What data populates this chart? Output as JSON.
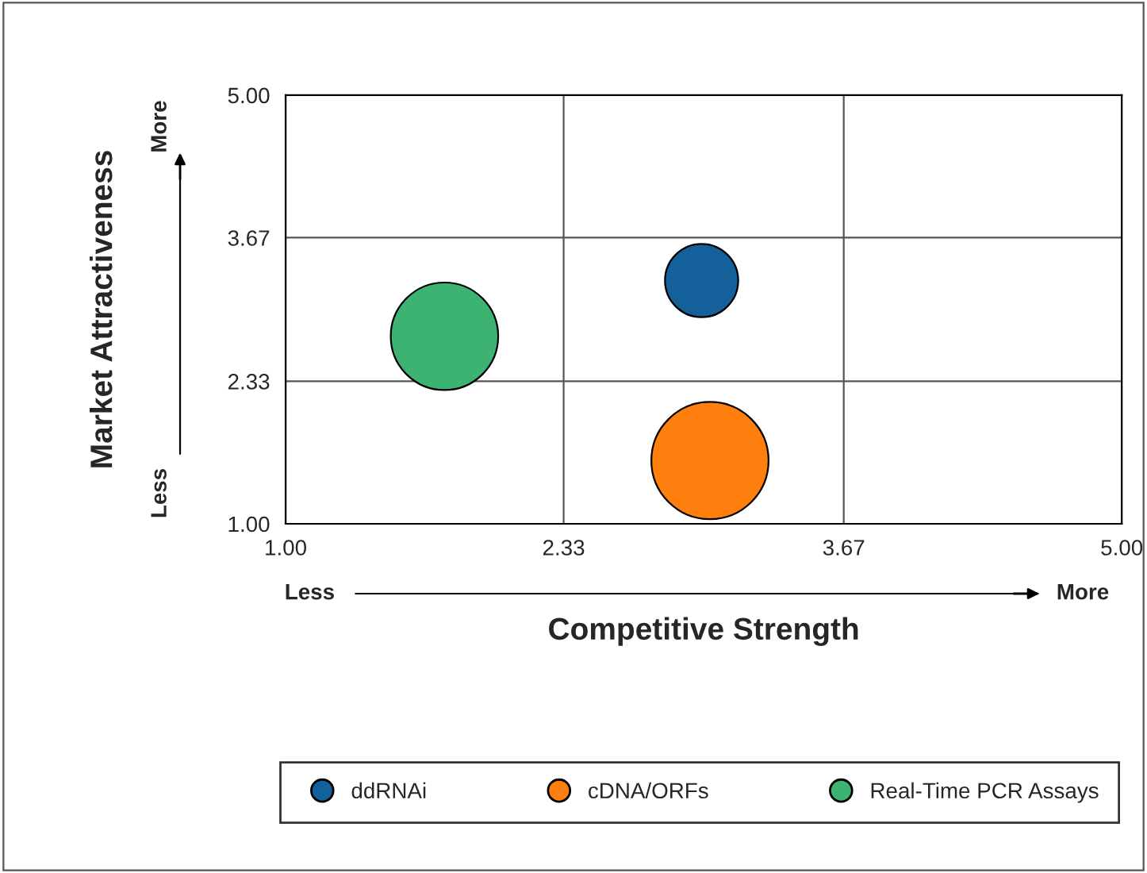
{
  "chart_data": {
    "type": "bubble",
    "xlabel": "Competitive Strength",
    "ylabel": "Market Attractiveness",
    "series": [
      {
        "name": "ddRNAi",
        "color": "#14609a",
        "x": [
          2.99
        ],
        "values": [
          3.27
        ],
        "sizes": [
          0.39
        ]
      },
      {
        "name": "cDNA/ORFs",
        "color": "#ff7f0e",
        "x": [
          3.03
        ],
        "values": [
          1.59
        ],
        "sizes": [
          1
        ]
      },
      {
        "name": "Real-Time PCR Assays",
        "color": "#3cb371",
        "x": [
          1.76
        ],
        "values": [
          2.75
        ],
        "sizes": [
          0.84
        ]
      }
    ],
    "xlim": [
      1,
      5
    ],
    "ylim": [
      1,
      5
    ],
    "xticks": [
      {
        "value": 1,
        "label": "1.00"
      },
      {
        "value": 2.33,
        "label": "2.33"
      },
      {
        "value": 3.67,
        "label": "3.67"
      },
      {
        "value": 5,
        "label": "5.00"
      }
    ],
    "yticks": [
      {
        "value": 1,
        "label": "1.00"
      },
      {
        "value": 2.33,
        "label": "2.33"
      },
      {
        "value": 3.67,
        "label": "3.67"
      },
      {
        "value": 5,
        "label": "5.00"
      }
    ],
    "annotations": [
      "Less",
      "More",
      "Less",
      "More"
    ],
    "grid": true,
    "legend": "bottom",
    "marker": "circle"
  }
}
